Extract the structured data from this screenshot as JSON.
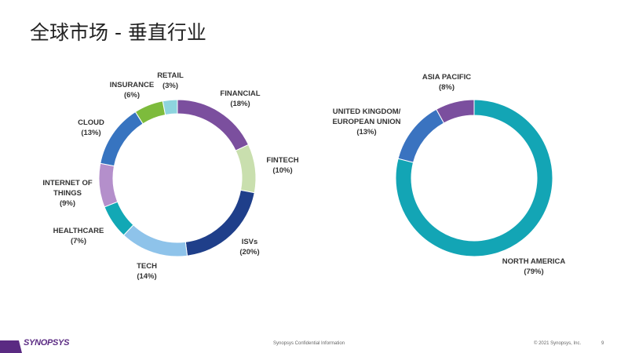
{
  "header": {
    "title": "全球市场 - 垂直行业"
  },
  "chart_data": [
    {
      "type": "donut",
      "categories": [
        "FINANCIAL",
        "FINTECH",
        "ISVs",
        "TECH",
        "HEALTHCARE",
        "INTERNET OF THINGS",
        "CLOUD",
        "INSURANCE",
        "RETAIL"
      ],
      "values": [
        18,
        10,
        20,
        14,
        7,
        9,
        13,
        6,
        3
      ],
      "value_labels": [
        "(18%)",
        "(10%)",
        "(20%)",
        "(14%)",
        "(7%)",
        "(9%)",
        "(13%)",
        "(6%)",
        "(3%)"
      ],
      "colors": [
        "#7b4f9e",
        "#c9dfae",
        "#1f3f8a",
        "#8ec3ea",
        "#12a8b5",
        "#b48fcb",
        "#3774c0",
        "#7dbb3c",
        "#8ed4de"
      ]
    },
    {
      "type": "donut",
      "categories": [
        "NORTH AMERICA",
        "UNITED KINGDOM/ EUROPEAN UNION",
        "ASIA PACIFIC"
      ],
      "values": [
        79,
        13,
        8
      ],
      "value_labels": [
        "(79%)",
        "(13%)",
        "(8%)"
      ],
      "colors": [
        "#13a5b5",
        "#3a73c0",
        "#7b4f9e"
      ]
    }
  ],
  "footer": {
    "logo": "SYNOPSYS",
    "confidential": "Synopsys Confidential Information",
    "copyright": "© 2021 Synopsys, Inc.",
    "page": "9"
  }
}
